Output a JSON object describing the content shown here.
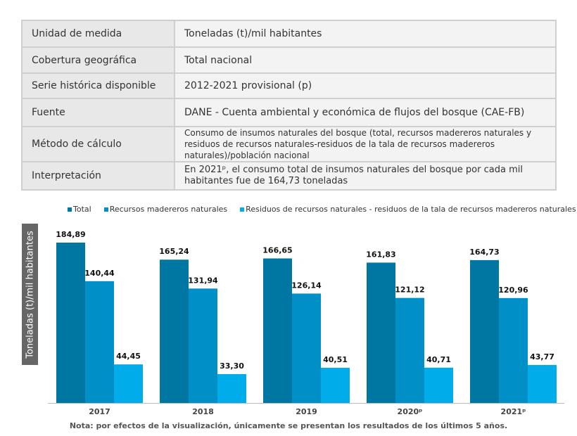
{
  "info_table": [
    {
      "label": "Unidad de medida",
      "value": "Toneladas (t)/mil habitantes"
    },
    {
      "label": "Cobertura geográfica",
      "value": "Total nacional"
    },
    {
      "label": "Serie histórica disponible",
      "value": "2012-2021 provisional (p)"
    },
    {
      "label": "Fuente",
      "value": "DANE - Cuenta ambiental y económica de flujos del bosque (CAE-FB)"
    },
    {
      "label": "Método de cálculo",
      "value": "Consumo de insumos naturales del bosque (total, recursos madereros naturales y residuos de recursos naturales-residuos de la tala de recursos madereros naturales)/población nacional"
    },
    {
      "label": "Interpretación",
      "value": "En 2021ᵖ, el consumo total de insumos naturales del bosque por cada mil habitantes fue de 164,73 toneladas"
    }
  ],
  "colors": {
    "total": "#0077a3",
    "recursos": "#008fc7",
    "residuos": "#00adea",
    "axis": "#bbbbbb"
  },
  "chart_data": {
    "type": "bar",
    "title": "",
    "xlabel": "",
    "ylabel": "Toneladas (t)/mil habitantes",
    "ylim": [
      0,
      200
    ],
    "grid": false,
    "legend_position": "top",
    "categories": [
      "2017",
      "2018",
      "2019",
      "2020ᵖ",
      "2021ᵖ"
    ],
    "series": [
      {
        "name": "Total",
        "values": [
          184.89,
          165.24,
          166.65,
          161.83,
          164.73
        ],
        "labels": [
          "184,89",
          "165,24",
          "166,65",
          "161,83",
          "164,73"
        ]
      },
      {
        "name": "Recursos madereros naturales",
        "values": [
          140.44,
          131.94,
          126.14,
          121.12,
          120.96
        ],
        "labels": [
          "140,44",
          "131,94",
          "126,14",
          "121,12",
          "120,96"
        ]
      },
      {
        "name": "Residuos de recursos naturales - residuos de la tala de recursos madereros naturales",
        "values": [
          44.45,
          33.3,
          40.51,
          40.71,
          43.77
        ],
        "labels": [
          "44,45",
          "33,30",
          "40,51",
          "40,71",
          "43,77"
        ]
      }
    ]
  },
  "note": "Nota: por efectos de la visualización, únicamente se presentan los resultados de los últimos 5 años."
}
